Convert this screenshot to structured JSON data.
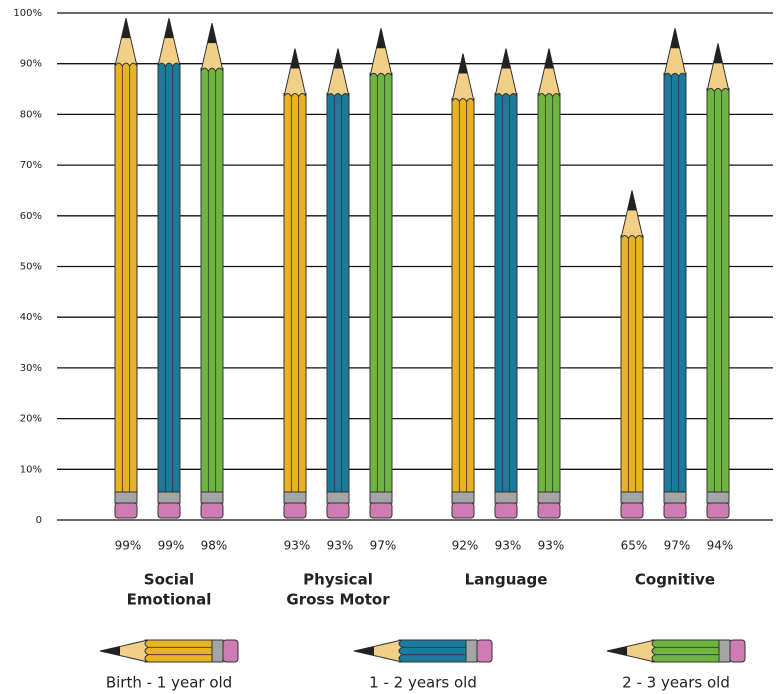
{
  "chart_data": {
    "type": "pencil-bar",
    "categories": [
      [
        "Social",
        "Emotional"
      ],
      [
        "Physical",
        "Gross Motor"
      ],
      [
        "Language"
      ],
      [
        "Cognitive"
      ]
    ],
    "series": [
      {
        "name": "Birth - 1 year old",
        "color": "#e9b422",
        "values": [
          99,
          93,
          92,
          65
        ],
        "value_labels": [
          "99%",
          "93%",
          "92%",
          "65%"
        ]
      },
      {
        "name": "1 - 2 years old",
        "color": "#1a7b9c",
        "values": [
          99,
          93,
          93,
          97
        ],
        "value_labels": [
          "99%",
          "93%",
          "93%",
          "97%"
        ]
      },
      {
        "name": "2 - 3 years old",
        "color": "#6db540",
        "values": [
          98,
          97,
          93,
          94
        ],
        "value_labels": [
          "98%",
          "97%",
          "93%",
          "94%"
        ]
      }
    ],
    "ylim": [
      0,
      100
    ],
    "yticks": [
      0,
      {
        "value": 10,
        "label": "10%"
      },
      {
        "value": 20,
        "label": "20%"
      },
      {
        "value": 30,
        "label": "30%"
      },
      {
        "value": 40,
        "label": "40%"
      },
      {
        "value": 50,
        "label": "50%"
      },
      {
        "value": 60,
        "label": "60%"
      },
      {
        "value": 70,
        "label": "70%"
      },
      {
        "value": 80,
        "label": "80%"
      },
      {
        "value": 90,
        "label": "90%"
      },
      {
        "value": 100,
        "label": "100%"
      }
    ],
    "grid": true
  }
}
